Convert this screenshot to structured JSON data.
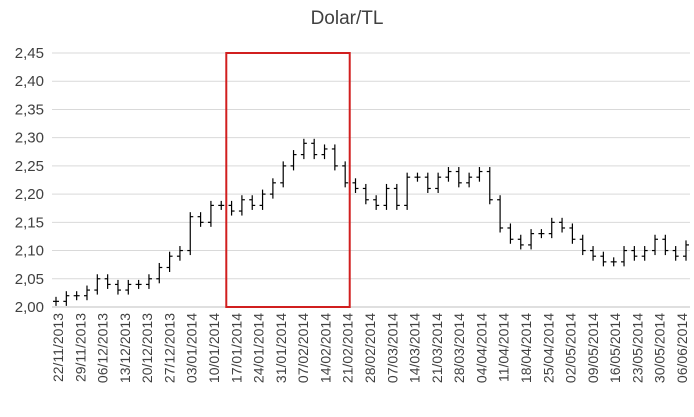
{
  "chart_data": {
    "type": "ohlc",
    "title": "Dolar/TL",
    "ylim": [
      2.0,
      2.45
    ],
    "ytick_step": 0.05,
    "y_ticks": [
      "2,00",
      "2,05",
      "2,10",
      "2,15",
      "2,20",
      "2,25",
      "2,30",
      "2,35",
      "2,40",
      "2,45"
    ],
    "x_tick_labels": [
      "22/11/2013",
      "29/11/2013",
      "06/12/2013",
      "13/12/2013",
      "20/12/2013",
      "27/12/2013",
      "03/01/2014",
      "10/01/2014",
      "17/01/2014",
      "24/01/2014",
      "31/01/2014",
      "07/02/2014",
      "14/02/2014",
      "21/02/2014",
      "28/02/2014",
      "07/03/2014",
      "14/03/2014",
      "21/03/2014",
      "28/03/2014",
      "04/04/2014",
      "11/04/2014",
      "18/04/2014",
      "25/04/2014",
      "02/05/2014",
      "09/05/2014",
      "16/05/2014",
      "23/05/2014",
      "30/05/2014",
      "06/06/2014"
    ],
    "grid": "horizontal",
    "legend": "none",
    "highlight_box": {
      "from": "17/01/2014",
      "to": "21/02/2014",
      "y_from": 2.0,
      "y_to": 2.45,
      "color": "#d11f1f"
    },
    "colors": {
      "bar": "#000000",
      "grid": "#d9d9d9",
      "axis": "#bfbfbf",
      "text": "#404040"
    },
    "series_closes": [
      2.01,
      2.02,
      2.02,
      2.03,
      2.05,
      2.04,
      2.03,
      2.04,
      2.04,
      2.05,
      2.07,
      2.09,
      2.1,
      2.16,
      2.15,
      2.18,
      2.18,
      2.17,
      2.19,
      2.18,
      2.2,
      2.22,
      2.25,
      2.27,
      2.29,
      2.27,
      2.28,
      2.25,
      2.22,
      2.21,
      2.19,
      2.18,
      2.21,
      2.18,
      2.23,
      2.23,
      2.21,
      2.23,
      2.24,
      2.22,
      2.23,
      2.24,
      2.19,
      2.14,
      2.12,
      2.11,
      2.13,
      2.13,
      2.15,
      2.14,
      2.12,
      2.1,
      2.09,
      2.08,
      2.08,
      2.1,
      2.09,
      2.1,
      2.12,
      2.1,
      2.09,
      2.11
    ]
  }
}
